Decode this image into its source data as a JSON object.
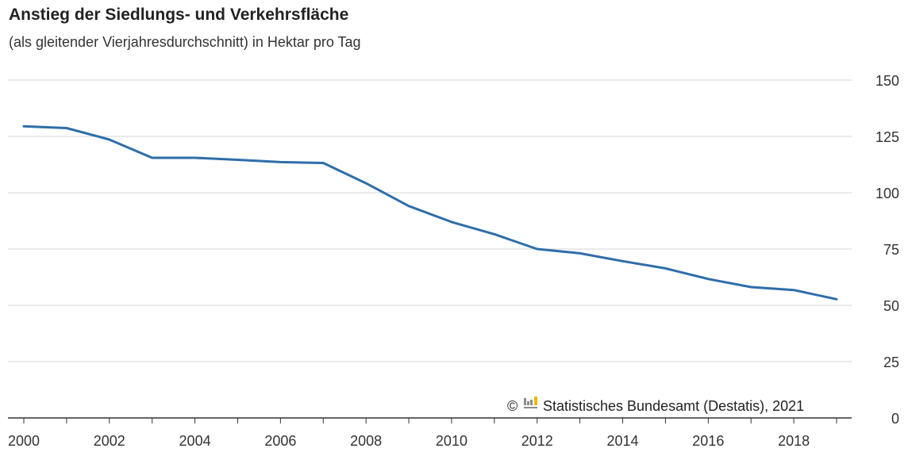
{
  "chart_data": {
    "type": "line",
    "title": "Anstieg der Siedlungs- und Verkehrsfläche",
    "subtitle": "(als gleitender Vierjahresdurchschnitt) in Hektar pro Tag",
    "xlabel": "",
    "ylabel": "",
    "x": [
      2000,
      2001,
      2002,
      2003,
      2004,
      2005,
      2006,
      2007,
      2008,
      2009,
      2010,
      2011,
      2012,
      2013,
      2014,
      2015,
      2016,
      2017,
      2018,
      2019
    ],
    "x_ticks": [
      "2000",
      "2002",
      "2004",
      "2006",
      "2008",
      "2010",
      "2012",
      "2014",
      "2016",
      "2018"
    ],
    "y_ticks": [
      "0",
      "25",
      "50",
      "75",
      "100",
      "125",
      "150"
    ],
    "ylim": [
      0,
      150
    ],
    "grid": true,
    "y_axis_side": "right",
    "series": [
      {
        "values": [
          129.5,
          128.7,
          123.6,
          115.5,
          115.5,
          114.6,
          113.6,
          113.2,
          104.2,
          94.1,
          87.0,
          81.6,
          75.0,
          73.1,
          69.6,
          66.4,
          61.7,
          58.1,
          56.8,
          52.7
        ],
        "color": "#2e6eaa"
      }
    ],
    "source": "Statistisches Bundesamt (Destatis), 2021",
    "copyright_symbol": "©"
  },
  "colors": {
    "line": "#2e6eaa",
    "grid": "#d6d6d6",
    "axis": "#333333",
    "logo_gray": "#8c8c8c",
    "logo_yellow": "#f2b705"
  }
}
